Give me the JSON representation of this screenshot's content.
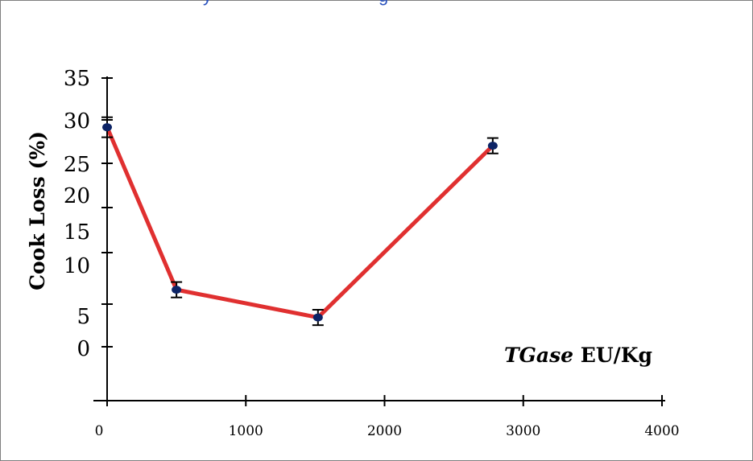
{
  "chart_data": {
    "type": "line",
    "title": "",
    "ylabel": "Cook Loss (%)",
    "xlabel_italic": "TGase",
    "xlabel_rest": " EU/Kg",
    "x_ticks": [
      0,
      1000,
      2000,
      3000,
      4000
    ],
    "y_ticks": [
      0,
      5,
      10,
      15,
      20,
      25,
      30,
      35
    ],
    "xlim": [
      0,
      4000
    ],
    "ylim": [
      0,
      35
    ],
    "series": [
      {
        "x": [
          0,
          500,
          1520,
          2780
        ],
        "y": [
          28.4,
          7.3,
          3.7,
          26.0
        ],
        "err": [
          1.3,
          1.0,
          1.0,
          1.0
        ],
        "color": "#e03030",
        "marker_color": "#0d2466"
      }
    ],
    "grid": false
  },
  "cut_title": {
    "part1": "y",
    "part2": "g"
  }
}
